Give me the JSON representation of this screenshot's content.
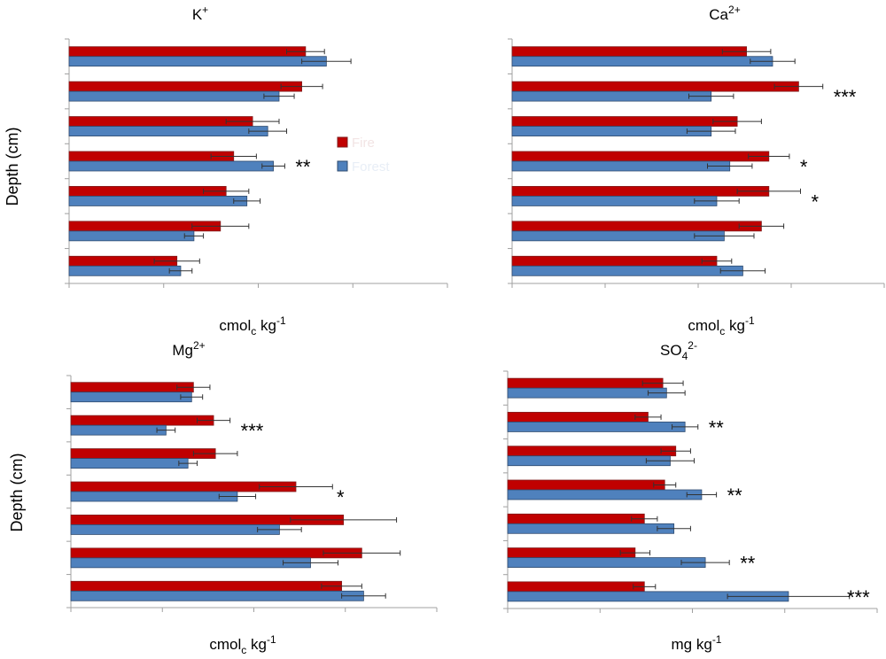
{
  "colors": {
    "fire": "#c00000",
    "forest": "#4f81bd",
    "fire_edge": "#7f1d1d",
    "forest_edge": "#2e4a6e"
  },
  "legend": {
    "fire": "Fire",
    "forest": "Forest"
  },
  "y_label": "Depth (cm)",
  "chart_data": [
    {
      "type": "bar",
      "title_base": "K",
      "title_sup": "+",
      "title_sub": "",
      "unit_pre": "cmol",
      "unit_sub": "c",
      "unit_mid": " kg",
      "unit_sup": "-1",
      "xlim": [
        0,
        20
      ],
      "series": [
        {
          "name": "Fire",
          "values": [
            12.5,
            12.3,
            9.7,
            8.7,
            8.3,
            8.0,
            5.7
          ],
          "errors": [
            1.0,
            1.1,
            1.4,
            1.2,
            1.2,
            1.5,
            1.2
          ]
        },
        {
          "name": "Forest",
          "values": [
            13.6,
            11.1,
            10.5,
            10.8,
            9.4,
            6.6,
            5.9
          ],
          "errors": [
            1.3,
            0.8,
            1.0,
            0.6,
            0.7,
            0.5,
            0.6
          ]
        }
      ],
      "stars": [
        "",
        "",
        "",
        "**",
        "",
        "",
        ""
      ]
    },
    {
      "type": "bar",
      "title_base": "Ca",
      "title_sup": "2+",
      "title_sub": "",
      "unit_pre": "cmol",
      "unit_sub": "c",
      "unit_mid": " kg",
      "unit_sup": "-1",
      "xlim": [
        0,
        20
      ],
      "series": [
        {
          "name": "Fire",
          "values": [
            12.6,
            15.4,
            12.1,
            13.8,
            13.8,
            13.4,
            11.0
          ],
          "errors": [
            1.3,
            1.3,
            1.3,
            1.1,
            1.7,
            1.2,
            0.8
          ]
        },
        {
          "name": "Forest",
          "values": [
            14.0,
            10.7,
            10.7,
            11.7,
            11.0,
            11.4,
            12.4
          ],
          "errors": [
            1.2,
            1.2,
            1.3,
            1.2,
            1.2,
            1.6,
            1.2
          ]
        }
      ],
      "stars": [
        "",
        "***",
        "",
        "*",
        "*",
        "",
        ""
      ]
    },
    {
      "type": "bar",
      "title_base": "Mg",
      "title_sup": "2+",
      "title_sub": "",
      "unit_pre": "cmol",
      "unit_sub": "c",
      "unit_mid": " kg",
      "unit_sup": "-1",
      "xlim": [
        0,
        20
      ],
      "series": [
        {
          "name": "Fire",
          "values": [
            6.7,
            7.8,
            7.9,
            12.3,
            14.9,
            15.9,
            14.8
          ],
          "errors": [
            0.9,
            0.9,
            1.2,
            2.0,
            2.9,
            2.1,
            1.1
          ]
        },
        {
          "name": "Forest",
          "values": [
            6.6,
            5.2,
            6.4,
            9.1,
            11.4,
            13.1,
            16.0
          ],
          "errors": [
            0.6,
            0.5,
            0.5,
            1.0,
            1.2,
            1.5,
            1.2
          ]
        }
      ],
      "stars": [
        "",
        "***",
        "",
        "*",
        "",
        "",
        ""
      ]
    },
    {
      "type": "bar",
      "title_base": "SO",
      "title_sup": "2-",
      "title_sub": "4",
      "unit_pre": "mg",
      "unit_sub": "",
      "unit_mid": " kg",
      "unit_sup": "-1",
      "xlim": [
        0,
        20
      ],
      "series": [
        {
          "name": "Fire",
          "values": [
            8.4,
            7.6,
            9.1,
            8.5,
            7.4,
            6.9,
            7.4
          ],
          "errors": [
            1.1,
            0.7,
            0.8,
            0.6,
            0.7,
            0.8,
            0.6
          ]
        },
        {
          "name": "Forest",
          "values": [
            8.6,
            9.6,
            8.8,
            10.5,
            9.0,
            10.7,
            15.2
          ],
          "errors": [
            1.0,
            0.7,
            1.3,
            0.8,
            0.9,
            1.3,
            3.3
          ]
        }
      ],
      "stars": [
        "",
        "**",
        "",
        "**",
        "",
        "**",
        "***"
      ]
    }
  ]
}
